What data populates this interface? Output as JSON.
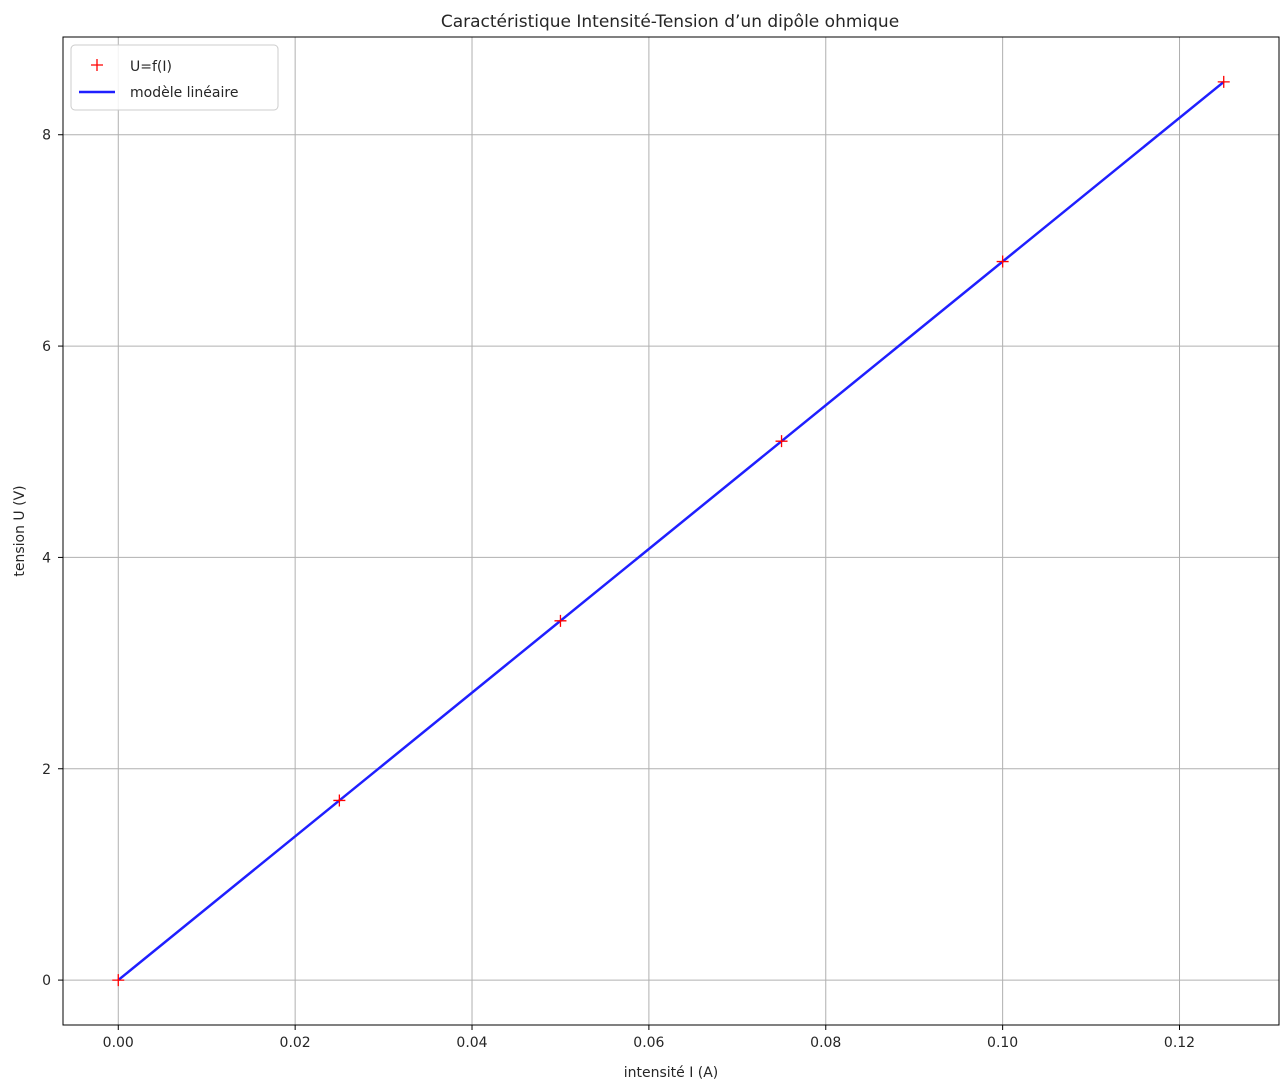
{
  "chart_data": {
    "type": "line",
    "title": "Caractéristique Intensité-Tension d’un dipôle ohmique",
    "xlabel": "intensité I (A)",
    "ylabel": "tension U (V)",
    "xlim": [
      -0.00625,
      0.13125
    ],
    "ylim": [
      -0.425,
      8.925
    ],
    "xticks": [
      0.0,
      0.02,
      0.04,
      0.06,
      0.08,
      0.1,
      0.12
    ],
    "xtick_labels": [
      "0.00",
      "0.02",
      "0.04",
      "0.06",
      "0.08",
      "0.10",
      "0.12"
    ],
    "yticks": [
      0,
      2,
      4,
      6,
      8
    ],
    "ytick_labels": [
      "0",
      "2",
      "4",
      "6",
      "8"
    ],
    "grid": true,
    "legend_position": "top-left",
    "series": [
      {
        "name": "U=f(I)",
        "kind": "markers",
        "marker": "+",
        "color": "#ff0000",
        "x": [
          0.0,
          0.025,
          0.05,
          0.075,
          0.1,
          0.125
        ],
        "y": [
          0.0,
          1.7,
          3.4,
          5.1,
          6.8,
          8.5
        ]
      },
      {
        "name": "modèle linéaire",
        "kind": "line",
        "color": "#1f1fff",
        "x": [
          0.0,
          0.125
        ],
        "y": [
          0.0,
          8.5
        ]
      }
    ]
  }
}
